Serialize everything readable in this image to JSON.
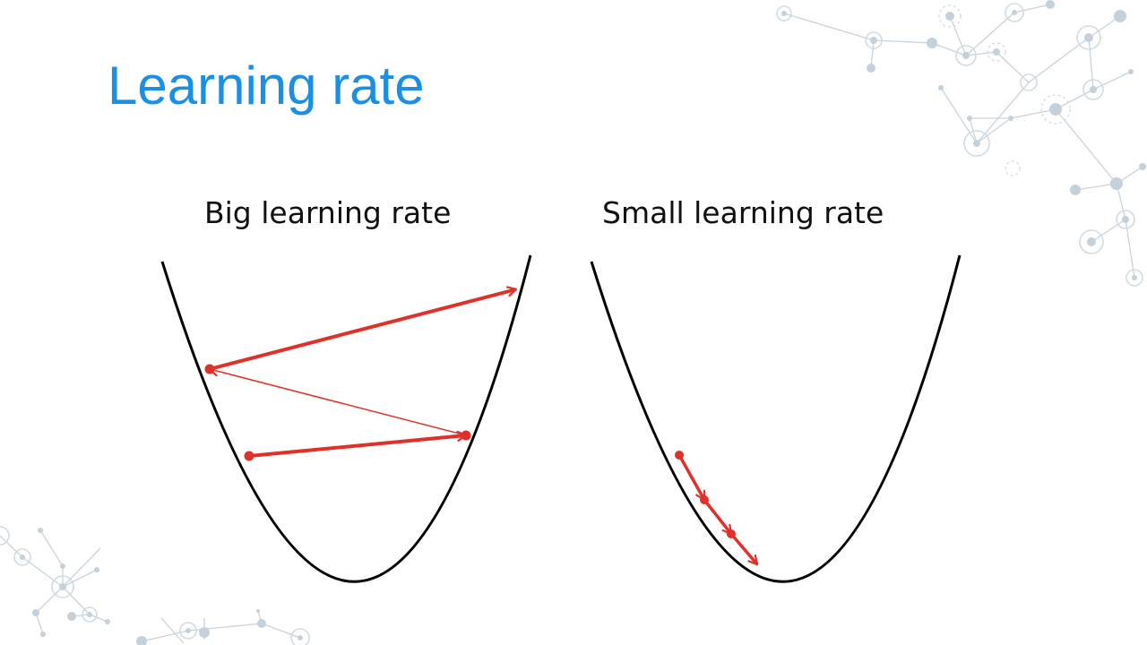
{
  "slide": {
    "title": "Learning rate"
  },
  "panels": [
    {
      "label": "Big learning rate"
    },
    {
      "label": "Small learning rate"
    }
  ],
  "colors": {
    "title": "#1a8fe3",
    "curve": "#000000",
    "step_arrows": "#e0302a",
    "decoration": "#c9d3da"
  }
}
